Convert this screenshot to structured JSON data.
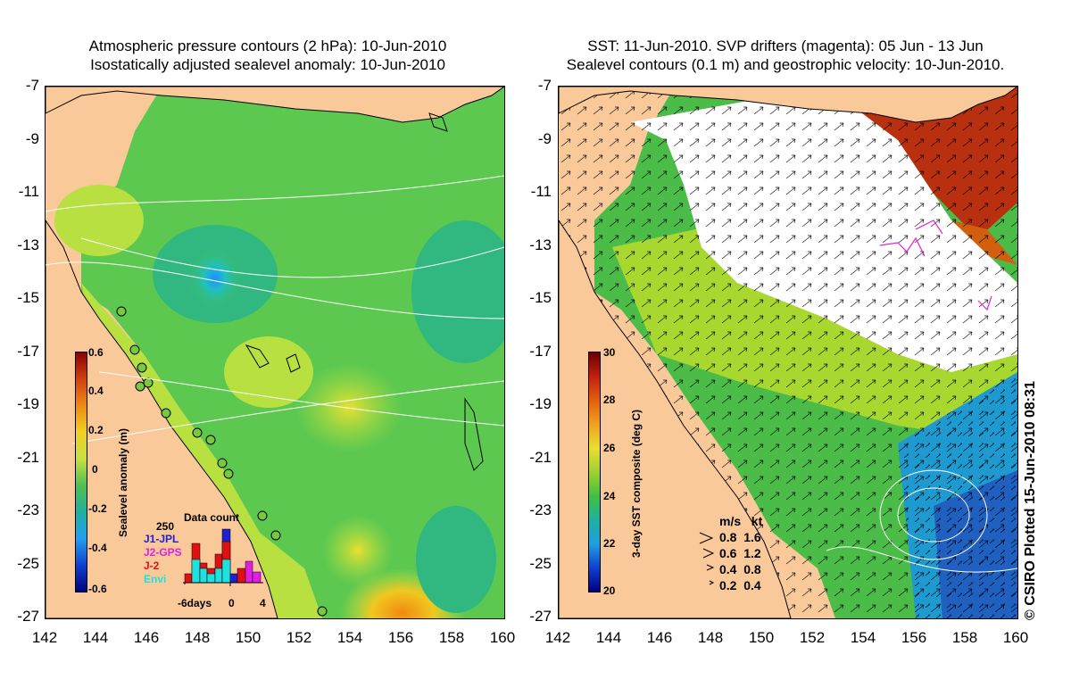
{
  "left_panel": {
    "title_line1": "Atmospheric pressure contours (2 hPa): 10-Jun-2010",
    "title_line2": "Isostatically adjusted sealevel anomaly: 10-Jun-2010",
    "colorbar_label": "Sealevel anomaly (m)",
    "colorbar_ticks": [
      "0.6",
      "0.4",
      "0.2",
      "0",
      "-0.2",
      "-0.4",
      "-0.6"
    ],
    "legend": {
      "count_value": "250",
      "title": "Data count",
      "series": [
        {
          "name": "J1-JPL",
          "color": "#2020d0"
        },
        {
          "name": "J2-GPS",
          "color": "#e020e0"
        },
        {
          "name": "J-2",
          "color": "#e01010"
        },
        {
          "name": "Envi",
          "color": "#20e0e0"
        }
      ],
      "axis_labels": [
        "-6days",
        "0",
        "4"
      ]
    }
  },
  "right_panel": {
    "title_line1": "SST: 11-Jun-2010. SVP drifters (magenta): 05 Jun - 13 Jun",
    "title_line2": "Sealevel contours (0.1 m) and geostrophic velocity: 10-Jun-2010.",
    "colorbar_label": "3-day SST composite (deg C)",
    "colorbar_ticks": [
      "30",
      "28",
      "26",
      "24",
      "22",
      "20"
    ],
    "vector_legend": {
      "header": "m/s   kt",
      "rows": [
        "0.8  1.6",
        "0.6  1.2",
        "0.4  0.8",
        "0.2  0.4"
      ]
    }
  },
  "axes": {
    "lat_ticks": [
      "-7",
      "-9",
      "-11",
      "-13",
      "-15",
      "-17",
      "-19",
      "-21",
      "-23",
      "-25",
      "-27"
    ],
    "lon_ticks": [
      "142",
      "144",
      "146",
      "148",
      "150",
      "152",
      "154",
      "156",
      "158",
      "160"
    ]
  },
  "copyright": "© CSIRO Plotted 15-Jun-2010 08:31",
  "colors": {
    "land": "#f9c99a",
    "cloud": "#ffffff",
    "drifter": "#e020e0"
  }
}
